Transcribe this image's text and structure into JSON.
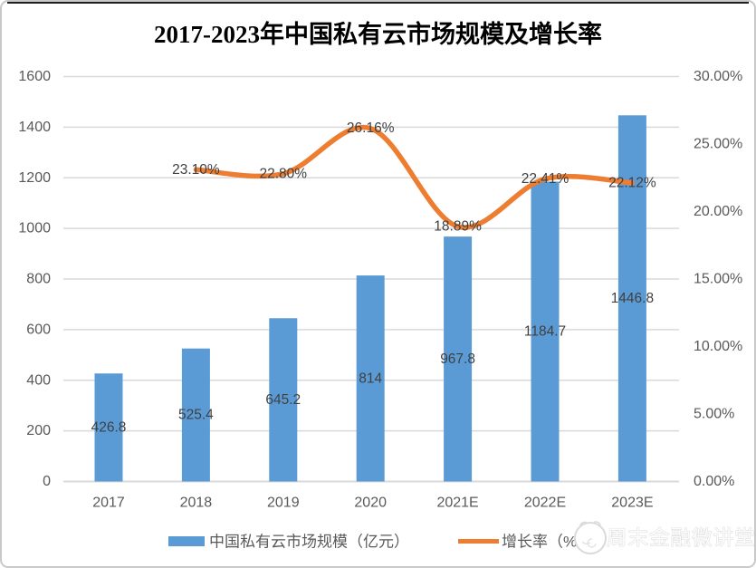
{
  "chart_data": {
    "type": "bar+line",
    "title": "2017-2023年中国私有云市场规模及增长率",
    "categories": [
      "2017",
      "2018",
      "2019",
      "2020",
      "2021E",
      "2022E",
      "2023E"
    ],
    "series": [
      {
        "name": "中国私有云市场规模（亿元）",
        "type": "bar",
        "axis": "left",
        "color": "#5B9BD5",
        "values": [
          426.8,
          525.4,
          645.2,
          814,
          967.8,
          1184.7,
          1446.8
        ],
        "labels": [
          "426.8",
          "525.4",
          "645.2",
          "814",
          "967.8",
          "1184.7",
          "1446.8"
        ]
      },
      {
        "name": "增长率（%）",
        "type": "line",
        "axis": "right",
        "color": "#ED7D31",
        "smooth": true,
        "values": [
          null,
          23.1,
          22.8,
          26.16,
          18.89,
          22.41,
          22.12
        ],
        "labels": [
          null,
          "23.10%",
          "22.80%",
          "26.16%",
          "18.89%",
          "22.41%",
          "22.12%"
        ]
      }
    ],
    "left_axis": {
      "min": 0,
      "max": 1600,
      "step": 200,
      "ticks": [
        "0",
        "200",
        "400",
        "600",
        "800",
        "1000",
        "1200",
        "1400",
        "1600"
      ]
    },
    "right_axis": {
      "min": 0,
      "max": 30,
      "step": 5,
      "ticks": [
        "0.00%",
        "5.00%",
        "10.00%",
        "15.00%",
        "20.00%",
        "25.00%",
        "30.00%"
      ]
    },
    "legend_position": "bottom",
    "grid": true
  },
  "legend": {
    "bar_label": "中国私有云市场规模（亿元）",
    "line_label": "增长率（%）"
  },
  "watermark": {
    "text": "周末金融微讲堂"
  },
  "colors": {
    "bar": "#5B9BD5",
    "line": "#ED7D31",
    "gridline": "#D9D9D9",
    "axis_line": "#D0D0D0",
    "axis_text": "#595959",
    "data_label": "#404040"
  }
}
